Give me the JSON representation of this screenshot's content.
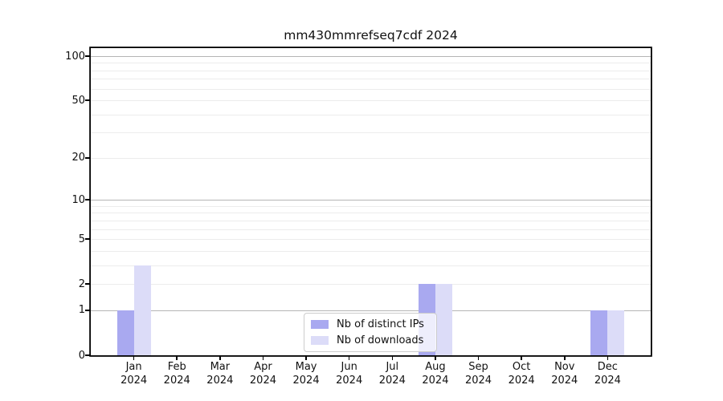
{
  "chart_data": {
    "type": "bar",
    "title": "mm430mmrefseq7cdf 2024",
    "categories": [
      "Jan",
      "Feb",
      "Mar",
      "Apr",
      "May",
      "Jun",
      "Jul",
      "Aug",
      "Sep",
      "Oct",
      "Nov",
      "Dec"
    ],
    "category_year": "2024",
    "series": [
      {
        "name": "Nb of distinct IPs",
        "color": "#a9a9f0",
        "values": [
          1,
          0,
          0,
          0,
          0,
          0,
          0,
          2,
          0,
          0,
          0,
          1
        ]
      },
      {
        "name": "Nb of downloads",
        "color": "#dcdcf8",
        "values": [
          3,
          0,
          0,
          0,
          0,
          0,
          0,
          2,
          0,
          0,
          0,
          1
        ]
      }
    ],
    "xlabel": "",
    "ylabel": "",
    "yscale": "log1p",
    "ylim": [
      0,
      105
    ],
    "y_ticks": [
      0,
      1,
      2,
      5,
      10,
      20,
      50,
      100
    ],
    "minor_gridlines": [
      2,
      3,
      4,
      5,
      6,
      7,
      8,
      9,
      20,
      30,
      40,
      50,
      60,
      70,
      80,
      90
    ],
    "major_gridlines": [
      1,
      10,
      100
    ],
    "grid": true,
    "legend_position": "lower center",
    "axis_color": "#000000",
    "minor_grid_color": "#ececec",
    "major_grid_color": "#b5b5b5",
    "background_color": "#ffffff"
  }
}
